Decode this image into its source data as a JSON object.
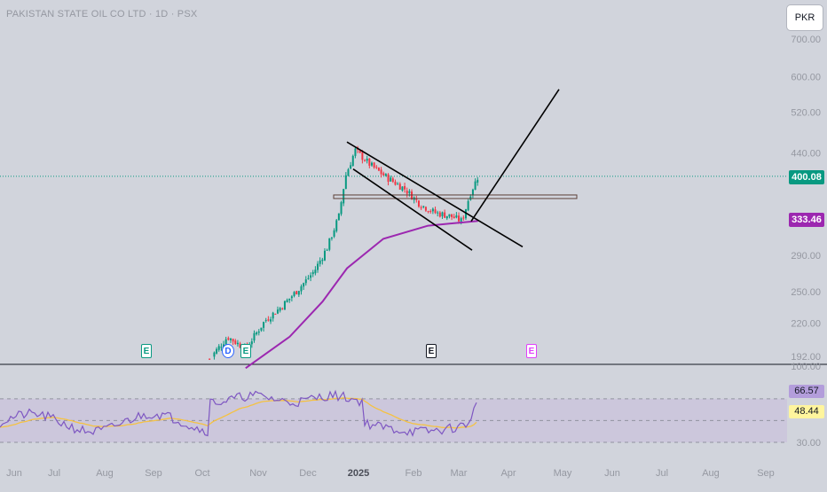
{
  "header": {
    "symbol_title": "PAKISTAN STATE OIL CO LTD · 1D · PSX",
    "currency_button": "PKR"
  },
  "price_labels": {
    "last_price": "400.08",
    "ma_value": "333.46"
  },
  "rsi_labels": {
    "rsi_value": "66.57",
    "rsi_ma_value": "48.44"
  },
  "events": [
    {
      "type": "earnings",
      "letter": "E",
      "color": "#089981"
    },
    {
      "type": "dividend",
      "letter": "D",
      "color": "#2962ff"
    },
    {
      "type": "earnings",
      "letter": "E",
      "color": "#089981"
    },
    {
      "type": "earnings",
      "letter": "E",
      "color": "#131722"
    },
    {
      "type": "earnings",
      "letter": "E",
      "color": "#e040fb"
    }
  ],
  "colors": {
    "background": "#d1d4dc",
    "up_candle": "#089981",
    "down_candle": "#f23645",
    "moving_average": "#9c27b0",
    "rsi_line": "#7e57c2",
    "rsi_ma_line": "#f5c242",
    "rsi_band": "#c9c3dc",
    "last_price": "#089981"
  },
  "chart_data": {
    "type": "candlestick",
    "title": "PAKISTAN STATE OIL CO LTD · 1D · PSX",
    "currency": "PKR",
    "y_axis": {
      "scale": "log",
      "ticks": [
        700,
        600,
        520,
        440,
        400,
        290,
        250,
        220,
        192
      ],
      "tick_labels": [
        "700.00",
        "600.00",
        "520.00",
        "440.00",
        "400.00",
        "290.00",
        "250.00",
        "220.00",
        "192.00"
      ]
    },
    "x_axis": {
      "tick_labels": [
        "Jun",
        "Jul",
        "Aug",
        "Sep",
        "Oct",
        "Nov",
        "Dec",
        "2025",
        "Feb",
        "Mar",
        "Apr",
        "May",
        "Jun",
        "Jul",
        "Aug",
        "Sep"
      ]
    },
    "price_path": [
      {
        "date": "2024-10-05",
        "close": 190
      },
      {
        "date": "2024-10-15",
        "close": 208
      },
      {
        "date": "2024-10-25",
        "close": 198
      },
      {
        "date": "2024-11-05",
        "close": 222
      },
      {
        "date": "2024-11-15",
        "close": 235
      },
      {
        "date": "2024-11-25",
        "close": 252
      },
      {
        "date": "2024-12-05",
        "close": 272
      },
      {
        "date": "2024-12-13",
        "close": 300
      },
      {
        "date": "2024-12-20",
        "close": 340
      },
      {
        "date": "2024-12-24",
        "close": 400
      },
      {
        "date": "2024-12-30",
        "close": 445
      },
      {
        "date": "2025-01-08",
        "close": 418
      },
      {
        "date": "2025-01-17",
        "close": 398
      },
      {
        "date": "2025-01-27",
        "close": 380
      },
      {
        "date": "2025-02-05",
        "close": 357
      },
      {
        "date": "2025-02-14",
        "close": 345
      },
      {
        "date": "2025-02-24",
        "close": 340
      },
      {
        "date": "2025-03-03",
        "close": 333
      },
      {
        "date": "2025-03-08",
        "close": 372
      },
      {
        "date": "2025-03-13",
        "close": 400.08
      }
    ],
    "moving_average": {
      "last_value": 333.46,
      "points": [
        {
          "date": "2024-10-25",
          "value": 183
        },
        {
          "date": "2024-11-20",
          "value": 208
        },
        {
          "date": "2024-12-10",
          "value": 240
        },
        {
          "date": "2024-12-25",
          "value": 275
        },
        {
          "date": "2025-01-15",
          "value": 310
        },
        {
          "date": "2025-02-10",
          "value": 327
        },
        {
          "date": "2025-03-13",
          "value": 333.46
        }
      ]
    },
    "horizontal_level": {
      "value": 368
    },
    "rsi": {
      "ticks": [
        100,
        30
      ],
      "tick_labels": [
        "100.00",
        "30.00"
      ],
      "band": [
        30,
        70
      ],
      "last_value": 66.57,
      "ma_last_value": 48.44
    },
    "grid": false,
    "legend": "none"
  }
}
